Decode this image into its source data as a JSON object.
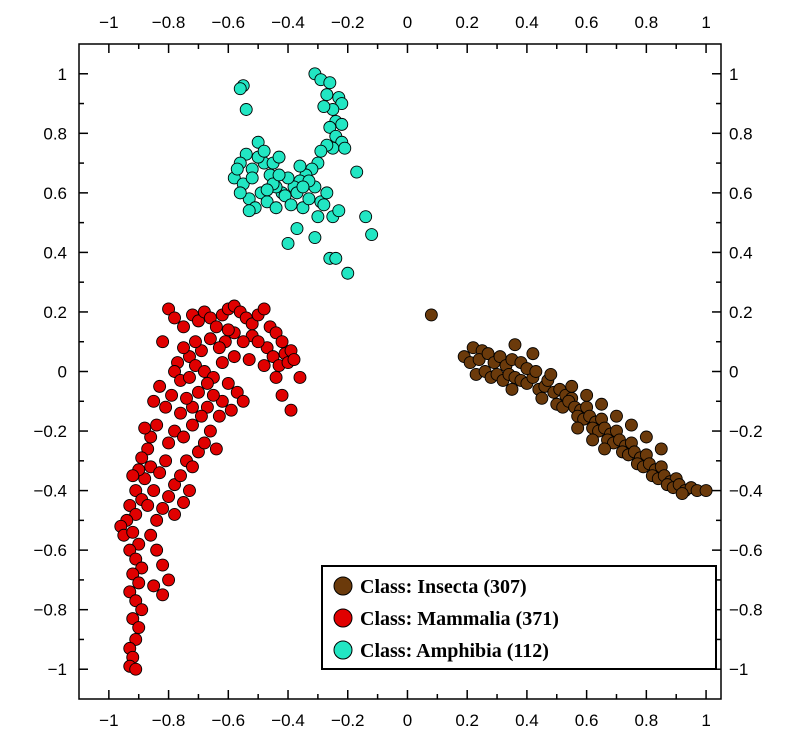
{
  "chart_data": {
    "type": "scatter",
    "title": "",
    "xlabel": "",
    "ylabel": "",
    "xlim": [
      -1.1,
      1.05
    ],
    "ylim": [
      -1.1,
      1.1
    ],
    "grid": false,
    "legend_position": "bottom-right",
    "x_ticks": [
      -1,
      -0.8,
      -0.6,
      -0.4,
      -0.2,
      0,
      0.2,
      0.4,
      0.6,
      0.8,
      1
    ],
    "y_ticks": [
      -1,
      -0.8,
      -0.6,
      -0.4,
      -0.2,
      0,
      0.2,
      0.4,
      0.6,
      0.8,
      1
    ],
    "x_tick_labels": [
      "−1",
      "−0.8",
      "−0.6",
      "−0.4",
      "−0.2",
      "0",
      "0.2",
      "0.4",
      "0.6",
      "0.8",
      "1"
    ],
    "y_tick_labels": [
      "−1",
      "−0.8",
      "−0.6",
      "−0.4",
      "−0.2",
      "0",
      "0.2",
      "0.4",
      "0.6",
      "0.8",
      "1"
    ],
    "series": [
      {
        "name": "Class: Insecta (307)",
        "color": "#6b3a0b",
        "points": [
          [
            0.08,
            0.19
          ],
          [
            0.22,
            0.08
          ],
          [
            0.25,
            0.07
          ],
          [
            0.19,
            0.05
          ],
          [
            0.21,
            0.03
          ],
          [
            0.24,
            0.04
          ],
          [
            0.27,
            0.06
          ],
          [
            0.29,
            0.03
          ],
          [
            0.31,
            0.05
          ],
          [
            0.33,
            0.02
          ],
          [
            0.35,
            0.04
          ],
          [
            0.23,
            -0.01
          ],
          [
            0.26,
            0.0
          ],
          [
            0.28,
            -0.02
          ],
          [
            0.3,
            -0.01
          ],
          [
            0.32,
            -0.03
          ],
          [
            0.34,
            -0.01
          ],
          [
            0.36,
            -0.02
          ],
          [
            0.38,
            -0.03
          ],
          [
            0.4,
            -0.04
          ],
          [
            0.42,
            -0.02
          ],
          [
            0.44,
            -0.06
          ],
          [
            0.46,
            -0.05
          ],
          [
            0.38,
            0.03
          ],
          [
            0.4,
            0.01
          ],
          [
            0.43,
            0.0
          ],
          [
            0.47,
            -0.03
          ],
          [
            0.49,
            -0.07
          ],
          [
            0.51,
            -0.06
          ],
          [
            0.53,
            -0.08
          ],
          [
            0.55,
            -0.09
          ],
          [
            0.5,
            -0.11
          ],
          [
            0.52,
            -0.12
          ],
          [
            0.54,
            -0.1
          ],
          [
            0.56,
            -0.12
          ],
          [
            0.58,
            -0.13
          ],
          [
            0.6,
            -0.12
          ],
          [
            0.57,
            -0.15
          ],
          [
            0.59,
            -0.16
          ],
          [
            0.61,
            -0.15
          ],
          [
            0.63,
            -0.17
          ],
          [
            0.65,
            -0.16
          ],
          [
            0.62,
            -0.19
          ],
          [
            0.64,
            -0.2
          ],
          [
            0.66,
            -0.19
          ],
          [
            0.68,
            -0.21
          ],
          [
            0.7,
            -0.2
          ],
          [
            0.67,
            -0.23
          ],
          [
            0.69,
            -0.24
          ],
          [
            0.71,
            -0.23
          ],
          [
            0.73,
            -0.25
          ],
          [
            0.75,
            -0.24
          ],
          [
            0.72,
            -0.27
          ],
          [
            0.74,
            -0.28
          ],
          [
            0.76,
            -0.27
          ],
          [
            0.78,
            -0.29
          ],
          [
            0.8,
            -0.28
          ],
          [
            0.77,
            -0.31
          ],
          [
            0.79,
            -0.32
          ],
          [
            0.81,
            -0.31
          ],
          [
            0.83,
            -0.33
          ],
          [
            0.85,
            -0.32
          ],
          [
            0.82,
            -0.35
          ],
          [
            0.84,
            -0.36
          ],
          [
            0.86,
            -0.35
          ],
          [
            0.88,
            -0.37
          ],
          [
            0.9,
            -0.36
          ],
          [
            0.87,
            -0.38
          ],
          [
            0.89,
            -0.39
          ],
          [
            0.91,
            -0.38
          ],
          [
            0.93,
            -0.4
          ],
          [
            0.95,
            -0.39
          ],
          [
            0.97,
            -0.4
          ],
          [
            1.0,
            -0.4
          ],
          [
            0.92,
            -0.41
          ],
          [
            0.6,
            -0.08
          ],
          [
            0.65,
            -0.11
          ],
          [
            0.7,
            -0.15
          ],
          [
            0.75,
            -0.18
          ],
          [
            0.8,
            -0.22
          ],
          [
            0.85,
            -0.26
          ],
          [
            0.55,
            -0.05
          ],
          [
            0.48,
            -0.01
          ],
          [
            0.57,
            -0.19
          ],
          [
            0.62,
            -0.23
          ],
          [
            0.66,
            -0.26
          ],
          [
            0.45,
            -0.09
          ],
          [
            0.35,
            -0.06
          ],
          [
            0.42,
            0.06
          ],
          [
            0.36,
            0.09
          ]
        ]
      },
      {
        "name": "Class: Mammalia (371)",
        "color": "#e00000",
        "points": [
          [
            -0.8,
            0.21
          ],
          [
            -0.78,
            0.18
          ],
          [
            -0.75,
            0.15
          ],
          [
            -0.72,
            0.19
          ],
          [
            -0.7,
            0.17
          ],
          [
            -0.68,
            0.2
          ],
          [
            -0.66,
            0.18
          ],
          [
            -0.64,
            0.15
          ],
          [
            -0.62,
            0.19
          ],
          [
            -0.6,
            0.21
          ],
          [
            -0.58,
            0.22
          ],
          [
            -0.56,
            0.2
          ],
          [
            -0.54,
            0.18
          ],
          [
            -0.52,
            0.16
          ],
          [
            -0.5,
            0.19
          ],
          [
            -0.48,
            0.21
          ],
          [
            -0.46,
            0.15
          ],
          [
            -0.44,
            0.13
          ],
          [
            -0.42,
            0.1
          ],
          [
            -0.47,
            0.08
          ],
          [
            -0.45,
            0.05
          ],
          [
            -0.43,
            0.02
          ],
          [
            -0.41,
            0.06
          ],
          [
            -0.39,
            0.07
          ],
          [
            -0.4,
            0.03
          ],
          [
            -0.38,
            0.04
          ],
          [
            -0.44,
            -0.02
          ],
          [
            -0.42,
            -0.08
          ],
          [
            -0.39,
            -0.13
          ],
          [
            -0.52,
            0.12
          ],
          [
            -0.55,
            0.1
          ],
          [
            -0.58,
            0.13
          ],
          [
            -0.61,
            0.1
          ],
          [
            -0.63,
            0.08
          ],
          [
            -0.66,
            0.11
          ],
          [
            -0.69,
            0.07
          ],
          [
            -0.71,
            0.1
          ],
          [
            -0.73,
            0.05
          ],
          [
            -0.75,
            0.08
          ],
          [
            -0.77,
            0.03
          ],
          [
            -0.78,
            0.0
          ],
          [
            -0.76,
            -0.03
          ],
          [
            -0.73,
            -0.02
          ],
          [
            -0.71,
            0.02
          ],
          [
            -0.68,
            0.0
          ],
          [
            -0.65,
            -0.02
          ],
          [
            -0.62,
            0.03
          ],
          [
            -0.6,
            -0.04
          ],
          [
            -0.58,
            0.05
          ],
          [
            -0.57,
            -0.07
          ],
          [
            -0.55,
            -0.1
          ],
          [
            -0.59,
            -0.13
          ],
          [
            -0.62,
            -0.1
          ],
          [
            -0.65,
            -0.08
          ],
          [
            -0.67,
            -0.12
          ],
          [
            -0.7,
            -0.07
          ],
          [
            -0.72,
            -0.12
          ],
          [
            -0.74,
            -0.09
          ],
          [
            -0.76,
            -0.14
          ],
          [
            -0.79,
            -0.08
          ],
          [
            -0.81,
            -0.12
          ],
          [
            -0.83,
            -0.05
          ],
          [
            -0.85,
            -0.1
          ],
          [
            -0.84,
            -0.18
          ],
          [
            -0.86,
            -0.22
          ],
          [
            -0.88,
            -0.19
          ],
          [
            -0.87,
            -0.26
          ],
          [
            -0.89,
            -0.29
          ],
          [
            -0.86,
            -0.32
          ],
          [
            -0.88,
            -0.36
          ],
          [
            -0.9,
            -0.33
          ],
          [
            -0.92,
            -0.35
          ],
          [
            -0.91,
            -0.4
          ],
          [
            -0.89,
            -0.43
          ],
          [
            -0.93,
            -0.45
          ],
          [
            -0.91,
            -0.48
          ],
          [
            -0.94,
            -0.5
          ],
          [
            -0.96,
            -0.52
          ],
          [
            -0.95,
            -0.55
          ],
          [
            -0.92,
            -0.54
          ],
          [
            -0.9,
            -0.58
          ],
          [
            -0.93,
            -0.6
          ],
          [
            -0.91,
            -0.63
          ],
          [
            -0.89,
            -0.66
          ],
          [
            -0.92,
            -0.68
          ],
          [
            -0.9,
            -0.71
          ],
          [
            -0.93,
            -0.74
          ],
          [
            -0.91,
            -0.77
          ],
          [
            -0.89,
            -0.8
          ],
          [
            -0.92,
            -0.83
          ],
          [
            -0.9,
            -0.86
          ],
          [
            -0.91,
            -0.9
          ],
          [
            -0.93,
            -0.93
          ],
          [
            -0.92,
            -0.96
          ],
          [
            -0.93,
            -0.99
          ],
          [
            -0.91,
            -1.0
          ],
          [
            -0.84,
            -0.6
          ],
          [
            -0.82,
            -0.65
          ],
          [
            -0.8,
            -0.7
          ],
          [
            -0.82,
            -0.75
          ],
          [
            -0.85,
            -0.72
          ],
          [
            -0.86,
            -0.55
          ],
          [
            -0.84,
            -0.5
          ],
          [
            -0.82,
            -0.46
          ],
          [
            -0.8,
            -0.42
          ],
          [
            -0.78,
            -0.38
          ],
          [
            -0.76,
            -0.35
          ],
          [
            -0.74,
            -0.3
          ],
          [
            -0.72,
            -0.32
          ],
          [
            -0.7,
            -0.27
          ],
          [
            -0.68,
            -0.24
          ],
          [
            -0.66,
            -0.2
          ],
          [
            -0.64,
            -0.26
          ],
          [
            -0.73,
            -0.4
          ],
          [
            -0.75,
            -0.44
          ],
          [
            -0.78,
            -0.48
          ],
          [
            -0.81,
            -0.3
          ],
          [
            -0.83,
            -0.34
          ],
          [
            -0.85,
            -0.4
          ],
          [
            -0.87,
            -0.45
          ],
          [
            -0.8,
            -0.24
          ],
          [
            -0.78,
            -0.2
          ],
          [
            -0.75,
            -0.22
          ],
          [
            -0.72,
            -0.18
          ],
          [
            -0.69,
            -0.15
          ],
          [
            -0.67,
            -0.04
          ],
          [
            -0.63,
            -0.15
          ],
          [
            -0.6,
            0.14
          ],
          [
            -0.53,
            0.04
          ],
          [
            -0.5,
            0.1
          ],
          [
            -0.48,
            0.02
          ],
          [
            -0.36,
            -0.02
          ],
          [
            -0.82,
            0.1
          ]
        ]
      },
      {
        "name": "Class: Amphibia (112)",
        "color": "#22e6c3",
        "points": [
          [
            -0.55,
            0.96
          ],
          [
            -0.56,
            0.95
          ],
          [
            -0.54,
            0.88
          ],
          [
            -0.31,
            1.0
          ],
          [
            -0.29,
            0.98
          ],
          [
            -0.26,
            0.97
          ],
          [
            -0.27,
            0.93
          ],
          [
            -0.23,
            0.92
          ],
          [
            -0.22,
            0.9
          ],
          [
            -0.25,
            0.88
          ],
          [
            -0.28,
            0.89
          ],
          [
            -0.24,
            0.84
          ],
          [
            -0.22,
            0.83
          ],
          [
            -0.26,
            0.82
          ],
          [
            -0.24,
            0.79
          ],
          [
            -0.22,
            0.77
          ],
          [
            -0.25,
            0.75
          ],
          [
            -0.27,
            0.76
          ],
          [
            -0.29,
            0.74
          ],
          [
            -0.3,
            0.7
          ],
          [
            -0.32,
            0.68
          ],
          [
            -0.34,
            0.66
          ],
          [
            -0.36,
            0.64
          ],
          [
            -0.38,
            0.62
          ],
          [
            -0.4,
            0.65
          ],
          [
            -0.42,
            0.6
          ],
          [
            -0.44,
            0.62
          ],
          [
            -0.46,
            0.66
          ],
          [
            -0.48,
            0.7
          ],
          [
            -0.5,
            0.72
          ],
          [
            -0.52,
            0.68
          ],
          [
            -0.54,
            0.73
          ],
          [
            -0.56,
            0.7
          ],
          [
            -0.58,
            0.65
          ],
          [
            -0.57,
            0.68
          ],
          [
            -0.55,
            0.63
          ],
          [
            -0.53,
            0.58
          ],
          [
            -0.51,
            0.55
          ],
          [
            -0.49,
            0.6
          ],
          [
            -0.47,
            0.57
          ],
          [
            -0.45,
            0.63
          ],
          [
            -0.43,
            0.66
          ],
          [
            -0.41,
            0.59
          ],
          [
            -0.39,
            0.56
          ],
          [
            -0.37,
            0.6
          ],
          [
            -0.35,
            0.55
          ],
          [
            -0.33,
            0.58
          ],
          [
            -0.31,
            0.62
          ],
          [
            -0.29,
            0.57
          ],
          [
            -0.27,
            0.6
          ],
          [
            -0.25,
            0.52
          ],
          [
            -0.23,
            0.54
          ],
          [
            -0.4,
            0.43
          ],
          [
            -0.37,
            0.48
          ],
          [
            -0.31,
            0.45
          ],
          [
            -0.26,
            0.38
          ],
          [
            -0.24,
            0.38
          ],
          [
            -0.2,
            0.33
          ],
          [
            -0.17,
            0.67
          ],
          [
            -0.14,
            0.52
          ],
          [
            -0.12,
            0.46
          ],
          [
            -0.52,
            0.65
          ],
          [
            -0.5,
            0.77
          ],
          [
            -0.48,
            0.74
          ],
          [
            -0.45,
            0.7
          ],
          [
            -0.43,
            0.72
          ],
          [
            -0.47,
            0.61
          ],
          [
            -0.44,
            0.55
          ],
          [
            -0.33,
            0.64
          ],
          [
            -0.36,
            0.69
          ],
          [
            -0.53,
            0.54
          ],
          [
            -0.56,
            0.6
          ],
          [
            -0.3,
            0.52
          ],
          [
            -0.28,
            0.56
          ],
          [
            -0.21,
            0.75
          ],
          [
            -0.35,
            0.62
          ]
        ]
      }
    ]
  }
}
